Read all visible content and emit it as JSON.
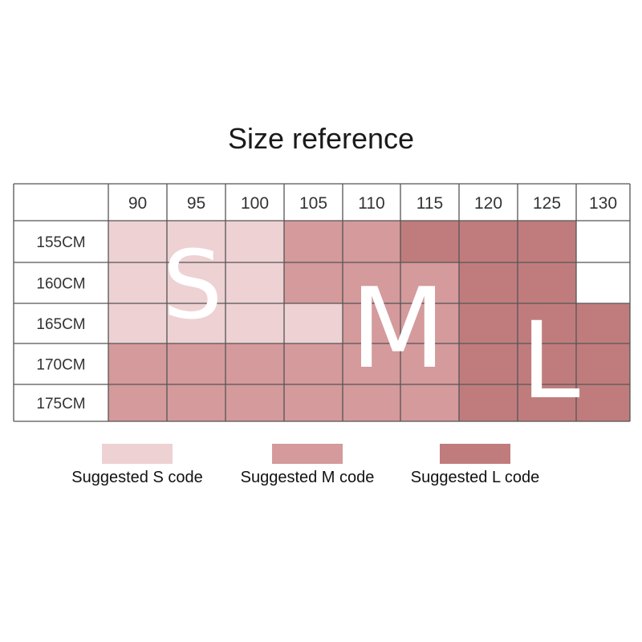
{
  "page": {
    "title": "Size reference"
  },
  "colors": {
    "S": "#edd1d3",
    "M": "#d49a9c",
    "L": "#c07c7d",
    "empty": "#ffffff",
    "grid_line": "#555555",
    "big_letter": "#ffffff"
  },
  "chart_data": {
    "type": "table",
    "title": "Size reference",
    "column_headers": [
      "90",
      "95",
      "100",
      "105",
      "110",
      "115",
      "120",
      "125",
      "130"
    ],
    "row_headers": [
      "155CM",
      "160CM",
      "165CM",
      "170CM",
      "175CM"
    ],
    "cells": [
      [
        "S",
        "S",
        "S",
        "M",
        "M",
        "L",
        "L",
        "L",
        ""
      ],
      [
        "S",
        "S",
        "S",
        "M",
        "M",
        "M",
        "L",
        "L",
        ""
      ],
      [
        "S",
        "S",
        "S",
        "S",
        "M",
        "M",
        "L",
        "L",
        "L"
      ],
      [
        "M",
        "M",
        "M",
        "M",
        "M",
        "M",
        "L",
        "L",
        "L"
      ],
      [
        "M",
        "M",
        "M",
        "M",
        "M",
        "M",
        "L",
        "L",
        "L"
      ]
    ],
    "region_letters": [
      "S",
      "M",
      "L"
    ]
  },
  "legend": [
    {
      "code": "S",
      "label": "Suggested S code"
    },
    {
      "code": "M",
      "label": "Suggested M code"
    },
    {
      "code": "L",
      "label": "Suggested L code"
    }
  ]
}
